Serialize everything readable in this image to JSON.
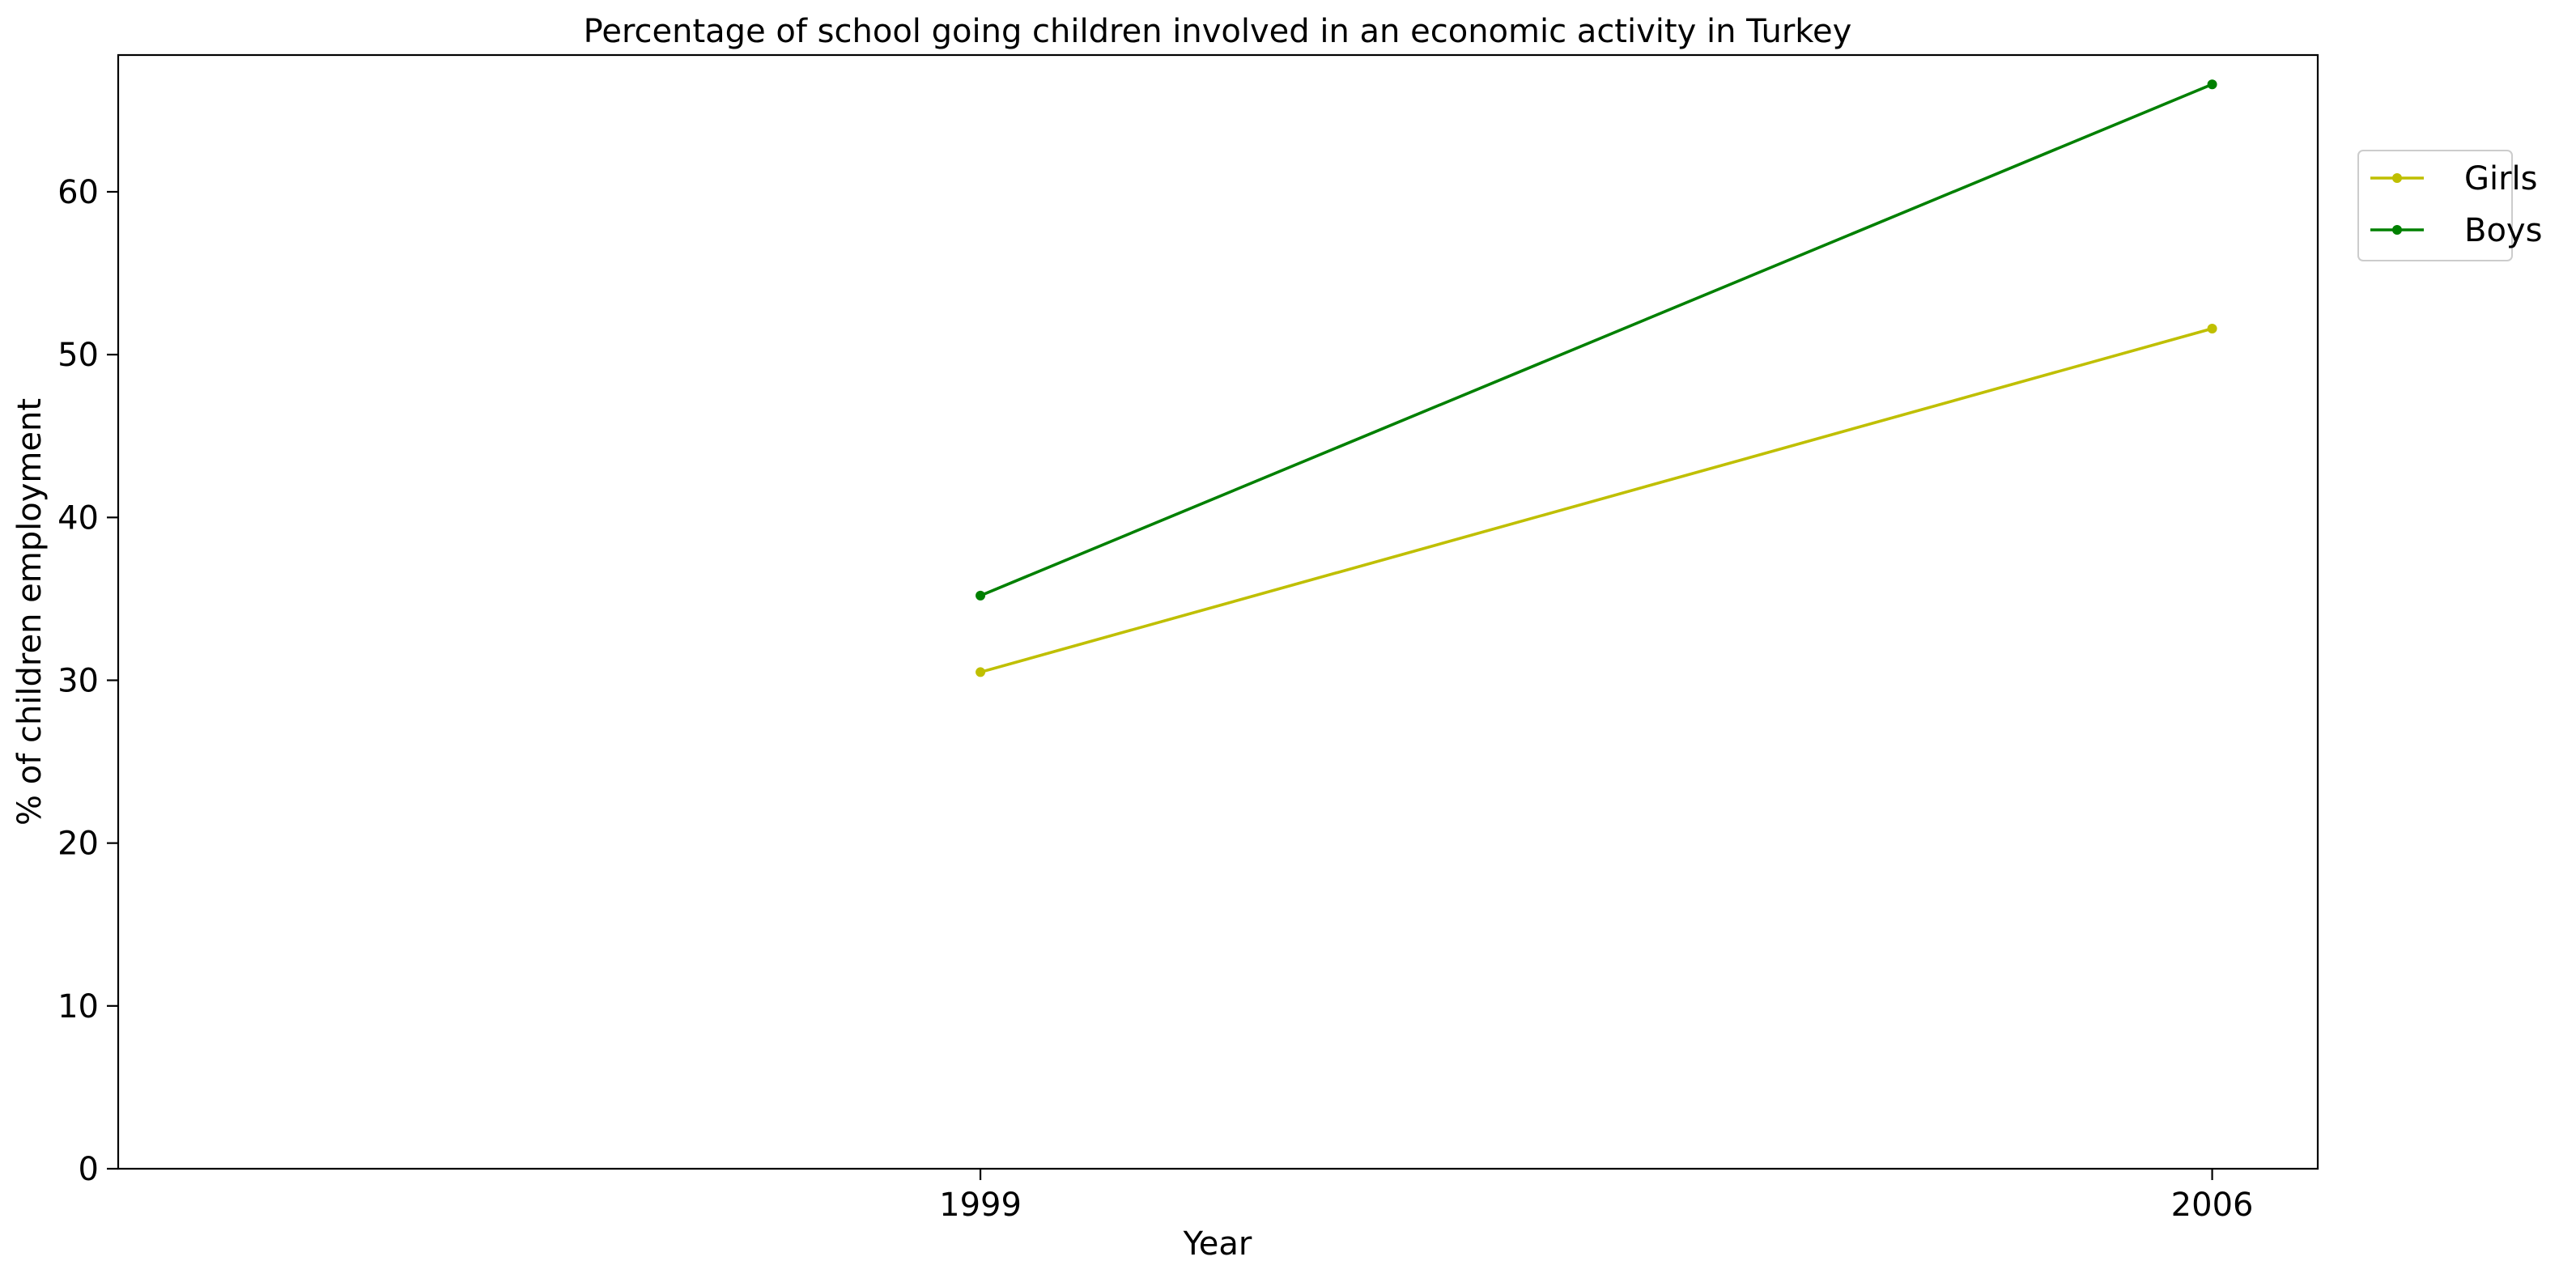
{
  "chart_data": {
    "type": "line",
    "title": "Percentage of school going children involved in an economic activity in Turkey",
    "xlabel": "Year",
    "ylabel": "% of children employment",
    "x": [
      "1999",
      "2006"
    ],
    "xlim": [
      1994.1,
      2006.6
    ],
    "ylim": [
      0,
      68.4
    ],
    "yticks": [
      0,
      10,
      20,
      30,
      40,
      50,
      60
    ],
    "grid": false,
    "legend_position": "outside-top-right",
    "series": [
      {
        "name": "Girls",
        "values": [
          30.5,
          51.6
        ],
        "color": "#bfbf00",
        "marker": "point"
      },
      {
        "name": "Boys",
        "values": [
          35.2,
          66.6
        ],
        "color": "#008000",
        "marker": "point"
      }
    ]
  }
}
